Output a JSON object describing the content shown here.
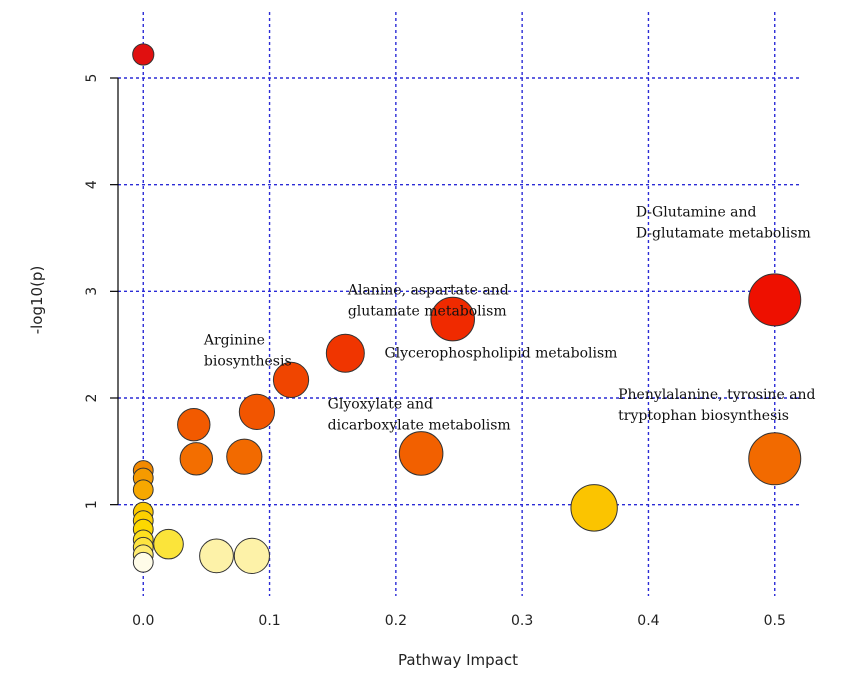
{
  "chart_data": {
    "type": "scatter",
    "title": "",
    "xlabel": "Pathway Impact",
    "ylabel": "-log10(p)",
    "xlim": [
      -0.02,
      0.52
    ],
    "ylim": [
      0.2,
      5.45
    ],
    "x_ticks": [
      {
        "value": 0.0,
        "label": "0.0"
      },
      {
        "value": 0.1,
        "label": "0.1"
      },
      {
        "value": 0.2,
        "label": "0.2"
      },
      {
        "value": 0.3,
        "label": "0.3"
      },
      {
        "value": 0.4,
        "label": "0.4"
      },
      {
        "value": 0.5,
        "label": "0.5"
      }
    ],
    "y_ticks": [
      {
        "value": 1,
        "label": "1"
      },
      {
        "value": 2,
        "label": "2"
      },
      {
        "value": 3,
        "label": "3"
      },
      {
        "value": 4,
        "label": "4"
      },
      {
        "value": 5,
        "label": "5"
      }
    ],
    "grid": true,
    "points": [
      {
        "x": 0.0,
        "y": 5.22,
        "size": 0.4,
        "color": "#e01010"
      },
      {
        "x": 0.5,
        "y": 2.92,
        "size": 1.5,
        "color": "#ee1000"
      },
      {
        "x": 0.245,
        "y": 2.74,
        "size": 1.2,
        "color": "#f02a00"
      },
      {
        "x": 0.16,
        "y": 2.42,
        "size": 1.0,
        "color": "#f03500"
      },
      {
        "x": 0.117,
        "y": 2.17,
        "size": 0.9,
        "color": "#f04500"
      },
      {
        "x": 0.09,
        "y": 1.87,
        "size": 0.9,
        "color": "#f25500"
      },
      {
        "x": 0.04,
        "y": 1.75,
        "size": 0.8,
        "color": "#f25a00"
      },
      {
        "x": 0.22,
        "y": 1.48,
        "size": 1.2,
        "color": "#f26000"
      },
      {
        "x": 0.5,
        "y": 1.43,
        "size": 1.5,
        "color": "#f26a00"
      },
      {
        "x": 0.08,
        "y": 1.45,
        "size": 0.9,
        "color": "#f26a00"
      },
      {
        "x": 0.042,
        "y": 1.43,
        "size": 0.8,
        "color": "#f36e00"
      },
      {
        "x": 0.0,
        "y": 1.32,
        "size": 0.35,
        "color": "#f38a00"
      },
      {
        "x": 0.0,
        "y": 1.25,
        "size": 0.35,
        "color": "#f59a00"
      },
      {
        "x": 0.0,
        "y": 1.14,
        "size": 0.35,
        "color": "#f7a800"
      },
      {
        "x": 0.357,
        "y": 0.97,
        "size": 1.3,
        "color": "#fbc400"
      },
      {
        "x": 0.0,
        "y": 0.93,
        "size": 0.35,
        "color": "#fcc800"
      },
      {
        "x": 0.0,
        "y": 0.85,
        "size": 0.35,
        "color": "#fdd000"
      },
      {
        "x": 0.0,
        "y": 0.77,
        "size": 0.35,
        "color": "#fdd800"
      },
      {
        "x": 0.0,
        "y": 0.67,
        "size": 0.35,
        "color": "#fde020"
      },
      {
        "x": 0.02,
        "y": 0.63,
        "size": 0.7,
        "color": "#fbe43a"
      },
      {
        "x": 0.0,
        "y": 0.6,
        "size": 0.35,
        "color": "#fde440"
      },
      {
        "x": 0.0,
        "y": 0.53,
        "size": 0.35,
        "color": "#feeb70"
      },
      {
        "x": 0.058,
        "y": 0.52,
        "size": 0.85,
        "color": "#fdf2a8"
      },
      {
        "x": 0.086,
        "y": 0.52,
        "size": 0.9,
        "color": "#fdf2a8"
      },
      {
        "x": 0.0,
        "y": 0.46,
        "size": 0.35,
        "color": "#fffce8"
      }
    ],
    "annotations": [
      {
        "lines": [
          "D-Glutamine and",
          "D-glutamate metabolism"
        ],
        "x": 0.39,
        "y": 3.7
      },
      {
        "lines": [
          "Alanine, aspartate and",
          "glutamate metabolism"
        ],
        "x": 0.162,
        "y": 2.97
      },
      {
        "lines": [
          "Arginine",
          "biosynthesis"
        ],
        "x": 0.048,
        "y": 2.5
      },
      {
        "lines": [
          "Glycerophospholipid metabolism"
        ],
        "x": 0.191,
        "y": 2.38
      },
      {
        "lines": [
          "Glyoxylate and",
          "dicarboxylate metabolism"
        ],
        "x": 0.146,
        "y": 1.9
      },
      {
        "lines": [
          "Phenylalanine, tyrosine and",
          "tryptophan biosynthesis"
        ],
        "x": 0.376,
        "y": 1.99
      }
    ]
  }
}
